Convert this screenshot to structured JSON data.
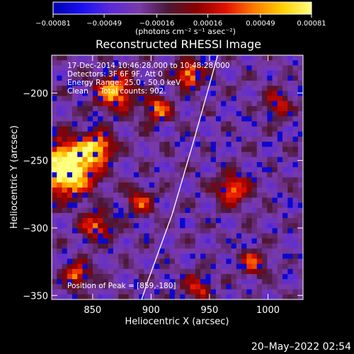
{
  "chart_data": {
    "type": "heatmap",
    "title": "Reconstructed RHESSI Image",
    "xlabel": "Heliocentric X (arcsec)",
    "ylabel": "Heliocentric Y (arcsec)",
    "xlim": [
      815,
      1030
    ],
    "ylim": [
      -353,
      -172
    ],
    "x_ticks": [
      850,
      900,
      950,
      1000
    ],
    "y_ticks": [
      -200,
      -250,
      -300,
      -350
    ],
    "x_tick_labels": [
      "850",
      "900",
      "950",
      "1000"
    ],
    "y_tick_labels": [
      "−200",
      "−250",
      "−300",
      "−350"
    ],
    "colormap": "blue-white-red (RHESSI)",
    "colorbar": {
      "min": -0.00081,
      "max": 0.00081,
      "tick_values": [
        -0.00081,
        -0.00049,
        -0.00016,
        0.00016,
        0.00049,
        0.00081
      ],
      "tick_labels": [
        "−0.00081",
        "−0.00049",
        "−0.00016",
        "0.00016",
        "0.00049",
        "0.00081"
      ],
      "units": "(photons cm⁻² s⁻¹ asec⁻²)"
    },
    "annotations": [
      "17-Dec-2014 10:46:28.000 to 10:48:28.000",
      "Detectors: 3F 6F 9F, Att 0",
      "Energy Range: 25.0 - 50.0 keV",
      "Clean     Total counts: 902."
    ],
    "peak_label": "Position of Peak = [859,-180]",
    "peak": [
      859,
      -180
    ],
    "limb_curve": [
      [
        957,
        -172
      ],
      [
        948,
        -200
      ],
      [
        935,
        -240
      ],
      [
        918,
        -290
      ],
      [
        897,
        -340
      ],
      [
        892,
        -353
      ]
    ],
    "grid": false,
    "timestamp": "20–May–2022 02:54"
  },
  "colors": {
    "background": "#000000",
    "text": "#ffffff",
    "colormap_stops": [
      "#0000b0",
      "#1a10f0",
      "#5a2ad8",
      "#7a3aa8",
      "#4a1838",
      "#8a0000",
      "#e01000",
      "#ff7a00",
      "#ffd000",
      "#ffff80"
    ]
  }
}
